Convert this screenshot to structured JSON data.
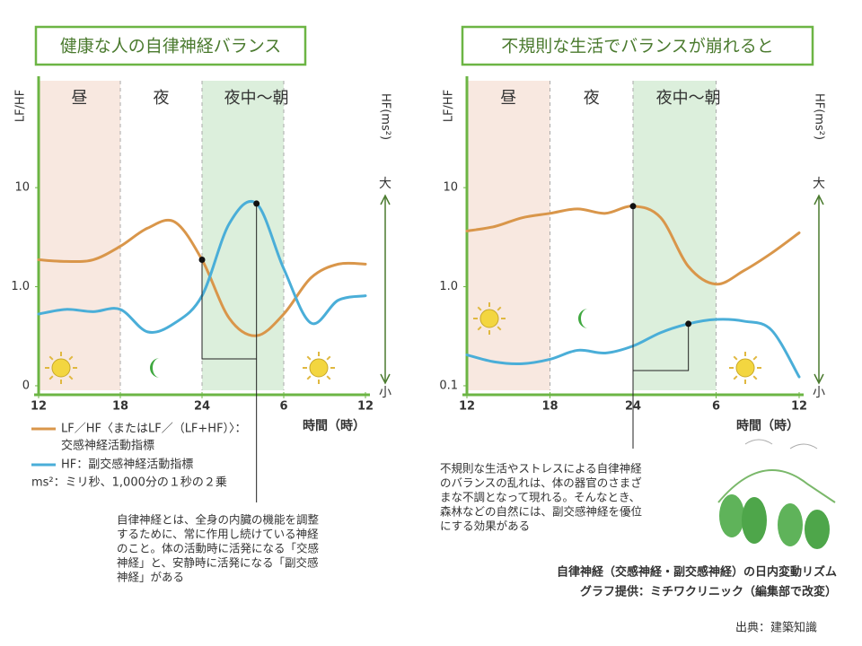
{
  "chart_data": [
    {
      "type": "line",
      "title": "健康な人の自律神経バランス",
      "y_label": "LF/HF",
      "y2_label": "HF(ms²)",
      "y2_top_label": "大",
      "y2_bottom_label": "小",
      "x_label": "時間（時）",
      "periods": [
        "昼",
        "夜",
        "夜中～朝"
      ],
      "x": [
        12,
        14,
        16,
        18,
        20,
        22,
        24,
        26,
        28,
        30,
        32,
        34,
        36
      ],
      "xlim": [
        12,
        36
      ],
      "xticks": [
        12,
        18,
        {
          "value": 24,
          "label": "24"
        },
        {
          "value": 30,
          "label": "6"
        },
        {
          "value": 36,
          "label": "12"
        }
      ],
      "ylim": [
        0.09,
        120
      ],
      "log_scale": true,
      "yticks": [
        {
          "value": 10,
          "label": "10"
        },
        {
          "value": 1,
          "label": "1.0"
        },
        {
          "value": 0.1,
          "label": "0"
        }
      ],
      "series": [
        {
          "name": "LF／HF〈またはLF／（LF+HF）〉：",
          "description": "交感神経活動指標",
          "color": "#d9964a",
          "values": [
            1.87,
            1.8,
            1.87,
            2.56,
            3.9,
            4.5,
            1.87,
            0.48,
            0.32,
            0.53,
            1.23,
            1.69,
            1.69
          ]
        },
        {
          "name": "HF：副交感神経活動指標",
          "color": "#4aaed8",
          "values": [
            0.53,
            0.59,
            0.56,
            0.59,
            0.35,
            0.43,
            0.81,
            4.33,
            6.9,
            1.52,
            0.43,
            0.73,
            0.81
          ]
        }
      ]
    },
    {
      "type": "line",
      "title": "不規則な生活でバランスが崩れると",
      "y_label": "LF/HF",
      "y2_label": "HF(ms²)",
      "y2_top_label": "大",
      "y2_bottom_label": "小",
      "x_label": "時間（時）",
      "periods": [
        "昼",
        "夜",
        "夜中～朝"
      ],
      "x": [
        12,
        14,
        16,
        18,
        20,
        22,
        24,
        26,
        28,
        30,
        32,
        34,
        36
      ],
      "xlim": [
        12,
        36
      ],
      "xticks": [
        12,
        18,
        {
          "value": 24,
          "label": "24"
        },
        {
          "value": 30,
          "label": "6"
        },
        {
          "value": 36,
          "label": "12"
        }
      ],
      "ylim": [
        0.09,
        120
      ],
      "log_scale": true,
      "yticks": [
        10,
        {
          "value": 1,
          "label": "1.0"
        },
        0.1
      ],
      "series": [
        {
          "color": "#d9964a",
          "values": [
            3.65,
            4.05,
            4.97,
            5.5,
            6.1,
            5.5,
            6.5,
            4.97,
            1.6,
            1.06,
            1.45,
            2.18,
            3.5
          ]
        },
        {
          "color": "#4aaed8",
          "values": [
            0.205,
            0.174,
            0.167,
            0.185,
            0.228,
            0.214,
            0.252,
            0.344,
            0.422,
            0.467,
            0.449,
            0.365,
            0.123
          ]
        }
      ]
    }
  ],
  "legend_note": "ms²：ミリ秒、1,000分の１秒の２乗",
  "annotations": [
    {
      "lines": [
        "自律神経とは、全身の内臓の機能を調整",
        "するために、常に作用し続けている神経",
        "のこと。体の活動時に活発になる「交感",
        "神経」と、安静時に活発になる「副交感",
        "神経」がある"
      ]
    },
    {
      "lines": [
        "不規則な生活やストレスによる自律神経",
        "のバランスの乱れは、体の器官のさまざ",
        "まな不調となって現れる。そんなとき、",
        "森林などの自然には、副交感神経を優位",
        "にする効果がある"
      ]
    }
  ],
  "caption": [
    "自律神経（交感神経・副交感神経）の日内変動リズム",
    "グラフ提供：ミチワクリニック（編集部で改変）"
  ],
  "source": "出典：建築知識"
}
